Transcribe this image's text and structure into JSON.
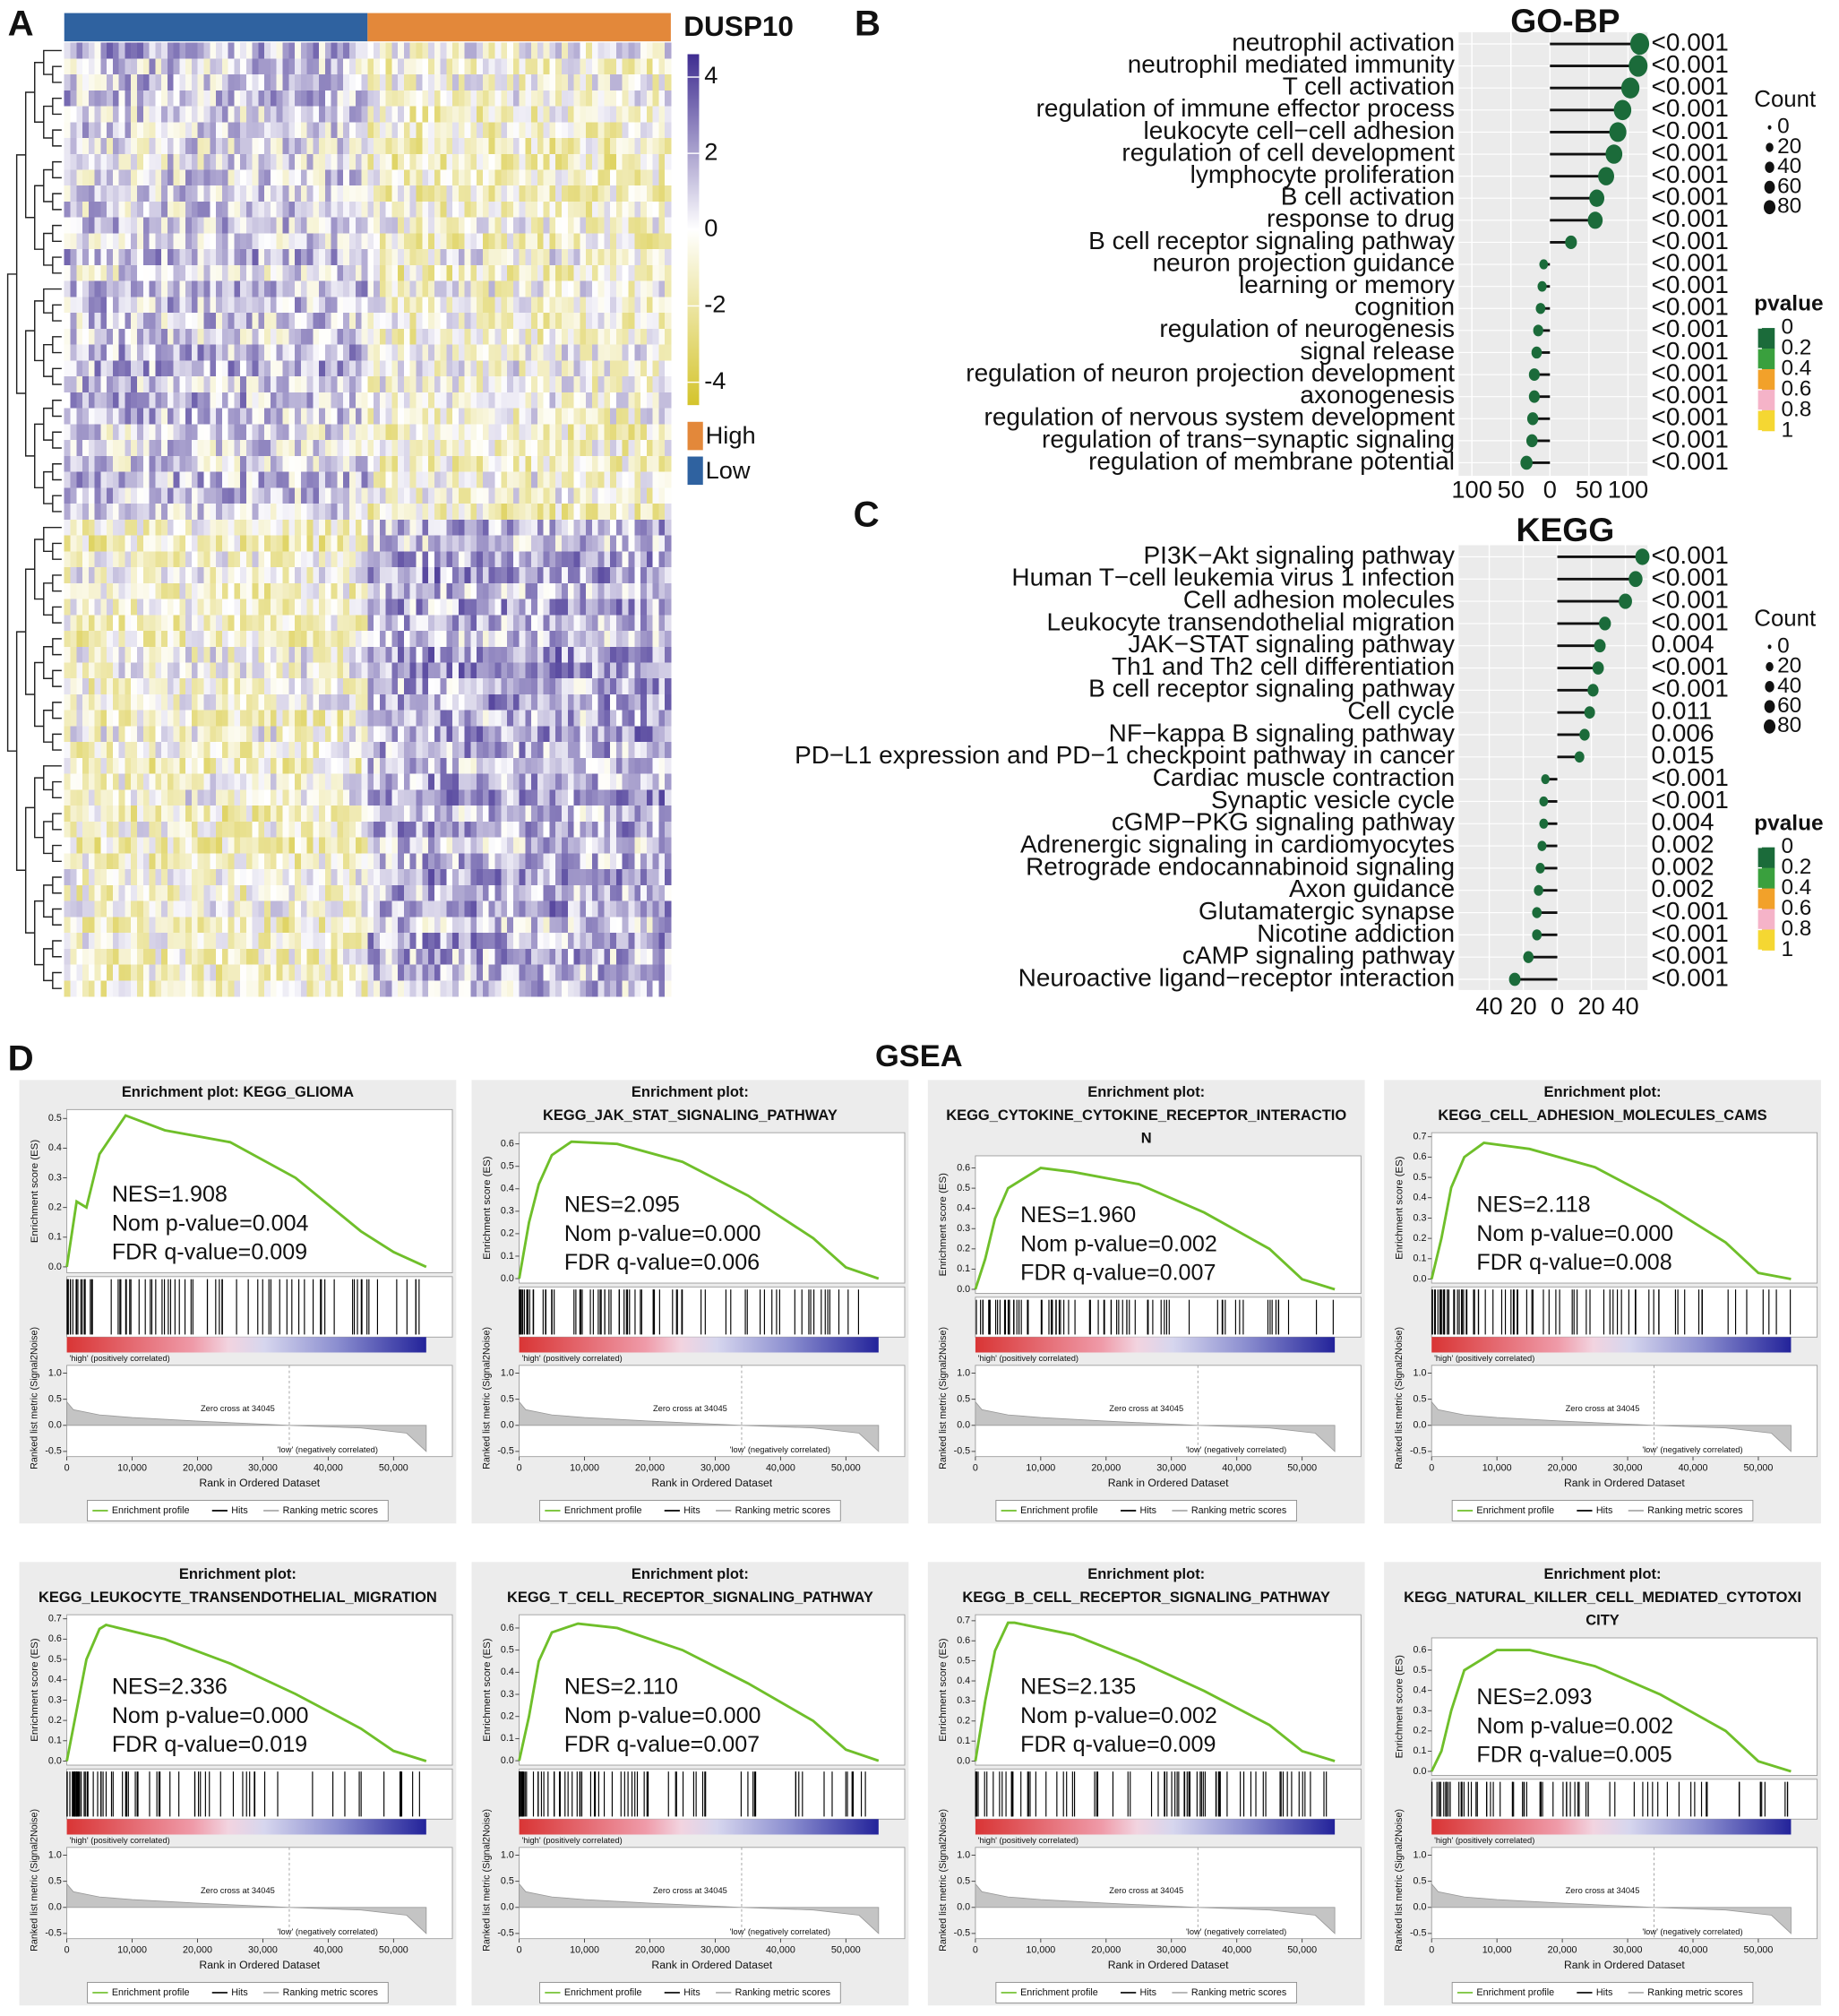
{
  "chart_data": [
    {
      "type": "heatmap",
      "panel": "A",
      "title": "DUSP10",
      "colorbar_lim": [
        -4.6,
        4.6
      ],
      "colorbar_ticks": [
        4,
        2,
        0,
        -2,
        -4
      ],
      "groups": [
        {
          "name": "High",
          "color": "#e3883a"
        },
        {
          "name": "Low",
          "color": "#2f62a0"
        }
      ]
    },
    {
      "type": "lollipop",
      "panel": "B",
      "title": "GO-BP",
      "categories": [
        "neutrophil activation",
        "neutrophil mediated immunity",
        "T cell activation",
        "regulation of immune effector process",
        "leukocyte cell−cell adhesion",
        "regulation of cell development",
        "lymphocyte proliferation",
        "B cell activation",
        "response to drug",
        "B cell receptor signaling pathway",
        "neuron projection guidance",
        "learning or memory",
        "cognition",
        "regulation of neurogenesis",
        "signal release",
        "regulation of neuron projection development",
        "axonogenesis",
        "regulation of nervous system development",
        "regulation of trans−synaptic signaling",
        "regulation of membrane potential"
      ],
      "values": [
        115,
        113,
        103,
        93,
        87,
        82,
        72,
        60,
        58,
        27,
        -8,
        -10,
        -12,
        -15,
        -17,
        -20,
        -20,
        -22,
        -23,
        -30
      ],
      "pvalue_labels": [
        "<0.001",
        "<0.001",
        "<0.001",
        "<0.001",
        "<0.001",
        "<0.001",
        "<0.001",
        "<0.001",
        "<0.001",
        "<0.001",
        "<0.001",
        "<0.001",
        "<0.001",
        "<0.001",
        "<0.001",
        "<0.001",
        "<0.001",
        "<0.001",
        "<0.001",
        "<0.001"
      ],
      "xlim": [
        -117,
        125
      ],
      "xticks": [
        {
          "value": -100,
          "label": "100"
        },
        {
          "value": -50,
          "label": "50"
        },
        0,
        50,
        100
      ],
      "size_title": "Count",
      "size_ticks": [
        0,
        20,
        40,
        60,
        80
      ],
      "color_title": "pvalue",
      "color_ticks": [
        0,
        0.2,
        0.4,
        0.6,
        0.8,
        1
      ],
      "color_scale": [
        "#1b6b3a",
        "#3aa03e",
        "#f2a12a",
        "#f5b3c8",
        "#f5d732"
      ]
    },
    {
      "type": "lollipop",
      "panel": "C",
      "title": "KEGG",
      "categories": [
        "PI3K−Akt signaling pathway",
        "Human T−cell leukemia virus 1 infection",
        "Cell adhesion molecules",
        "Leukocyte transendothelial migration",
        "JAK−STAT signaling pathway",
        "Th1 and Th2 cell differentiation",
        "B cell receptor signaling pathway",
        "Cell cycle",
        "NF−kappa B signaling pathway",
        "PD−L1 expression and PD−1 checkpoint pathway in cancer",
        "Cardiac muscle contraction",
        "Synaptic vesicle cycle",
        "cGMP−PKG signaling pathway",
        "Adrenergic signaling in cardiomyocytes",
        "Retrograde endocannabinoid signaling",
        "Axon guidance",
        "Glutamatergic synapse",
        "Nicotine addiction",
        "cAMP signaling pathway",
        "Neuroactive ligand−receptor interaction"
      ],
      "values": [
        50,
        46,
        40,
        28,
        25,
        24,
        21,
        19,
        16,
        13,
        -7,
        -8,
        -8,
        -9,
        -10,
        -11,
        -12,
        -12,
        -17,
        -25
      ],
      "pvalue_labels": [
        "<0.001",
        "<0.001",
        "<0.001",
        "<0.001",
        "0.004",
        "<0.001",
        "<0.001",
        "0.011",
        "0.006",
        "0.015",
        "<0.001",
        "<0.001",
        "0.004",
        "0.002",
        "0.002",
        "0.002",
        "<0.001",
        "<0.001",
        "<0.001",
        "<0.001"
      ],
      "xlim": [
        -58,
        53
      ],
      "xticks": [
        {
          "value": -40,
          "label": "40"
        },
        {
          "value": -20,
          "label": "20"
        },
        0,
        20,
        40
      ],
      "size_title": "Count",
      "size_ticks": [
        0,
        20,
        40,
        60,
        80
      ],
      "color_title": "pvalue",
      "color_ticks": [
        0,
        0.2,
        0.4,
        0.6,
        0.8,
        1
      ],
      "color_scale": [
        "#1b6b3a",
        "#3aa03e",
        "#f2a12a",
        "#f5b3c8",
        "#f5d732"
      ]
    },
    {
      "type": "gsea",
      "panel": "D",
      "title": "GSEA",
      "x_label": "Rank in Ordered Dataset",
      "es_label": "Enrichment score (ES)",
      "metric_label": "Ranked list metric (Signal2Noise)",
      "xlim": [
        0,
        59000
      ],
      "xticks": [
        0,
        {
          "value": 10000,
          "label": "10,000"
        },
        {
          "value": 20000,
          "label": "20,000"
        },
        {
          "value": 30000,
          "label": "30,000"
        },
        {
          "value": 40000,
          "label": "40,000"
        },
        {
          "value": 50000,
          "label": "50,000"
        }
      ],
      "metric_ylim": [
        -0.6,
        1.15
      ],
      "metric_yticks": [
        {
          "value": 1,
          "label": "1.0"
        },
        0.5,
        {
          "value": 0,
          "label": "0.0"
        },
        -0.5
      ],
      "metric": {
        "x": [
          0,
          1000,
          5000,
          10000,
          20000,
          34045,
          45000,
          52000,
          55000
        ],
        "values": [
          0.45,
          0.3,
          0.2,
          0.15,
          0.08,
          0,
          -0.05,
          -0.15,
          -0.5
        ]
      },
      "zero_cross_x": 34045,
      "zero_cross": "Zero cross at 34045",
      "high_label": "'high' (positively correlated)",
      "low_label": "'low' (negatively correlated)",
      "legend": [
        "Enrichment profile",
        "Hits",
        "Ranking metric scores"
      ],
      "plots": [
        {
          "title": [
            "Enrichment plot: KEGG_GLIOMA"
          ],
          "stats": [
            "NES=1.908",
            "Nom p-value=0.004",
            "FDR q-value=0.009"
          ],
          "ylim": [
            -0.02,
            0.53
          ],
          "yticks": [
            {
              "value": 0,
              "label": "0.0"
            },
            0.1,
            0.2,
            0.3,
            0.4,
            0.5
          ],
          "x": [
            0,
            1500,
            3000,
            5000,
            9000,
            15000,
            25000,
            35000,
            45000,
            50000,
            55000
          ],
          "values": [
            0,
            0.22,
            0.2,
            0.38,
            0.51,
            0.46,
            0.42,
            0.3,
            0.12,
            0.05,
            0
          ]
        },
        {
          "title": [
            "Enrichment plot:",
            "KEGG_JAK_STAT_SIGNALING_PATHWAY"
          ],
          "stats": [
            "NES=2.095",
            "Nom p-value=0.000",
            "FDR q-value=0.006"
          ],
          "ylim": [
            -0.02,
            0.65
          ],
          "yticks": [
            {
              "value": 0,
              "label": "0.0"
            },
            0.1,
            0.2,
            0.3,
            0.4,
            0.5,
            0.6
          ],
          "x": [
            0,
            1500,
            3000,
            5000,
            8000,
            15000,
            25000,
            35000,
            45000,
            50000,
            55000
          ],
          "values": [
            0,
            0.25,
            0.42,
            0.55,
            0.61,
            0.6,
            0.52,
            0.37,
            0.18,
            0.05,
            0
          ]
        },
        {
          "title": [
            "Enrichment plot:",
            "KEGG_CYTOKINE_CYTOKINE_RECEPTOR_INTERACTIO",
            "N"
          ],
          "stats": [
            "NES=1.960",
            "Nom p-value=0.002",
            "FDR q-value=0.007"
          ],
          "ylim": [
            -0.02,
            0.66
          ],
          "yticks": [
            {
              "value": 0,
              "label": "0.0"
            },
            0.1,
            0.2,
            0.3,
            0.4,
            0.5,
            0.6
          ],
          "x": [
            0,
            1500,
            3000,
            5000,
            10000,
            15000,
            25000,
            35000,
            45000,
            50000,
            55000
          ],
          "values": [
            0,
            0.15,
            0.35,
            0.5,
            0.6,
            0.58,
            0.52,
            0.38,
            0.2,
            0.05,
            0
          ]
        },
        {
          "title": [
            "Enrichment plot:",
            "KEGG_CELL_ADHESION_MOLECULES_CAMS"
          ],
          "stats": [
            "NES=2.118",
            "Nom p-value=0.000",
            "FDR q-value=0.008"
          ],
          "ylim": [
            -0.02,
            0.72
          ],
          "yticks": [
            {
              "value": 0,
              "label": "0.0"
            },
            0.1,
            0.2,
            0.3,
            0.4,
            0.5,
            0.6,
            0.7
          ],
          "x": [
            0,
            1500,
            3000,
            5000,
            8000,
            15000,
            25000,
            35000,
            45000,
            50000,
            55000
          ],
          "values": [
            0,
            0.2,
            0.45,
            0.6,
            0.67,
            0.64,
            0.55,
            0.38,
            0.18,
            0.03,
            0
          ]
        },
        {
          "title": [
            "Enrichment plot:",
            "KEGG_LEUKOCYTE_TRANSENDOTHELIAL_MIGRATION"
          ],
          "stats": [
            "NES=2.336",
            "Nom p-value=0.000",
            "FDR q-value=0.019"
          ],
          "ylim": [
            -0.02,
            0.72
          ],
          "yticks": [
            {
              "value": 0,
              "label": "0.0"
            },
            0.1,
            0.2,
            0.3,
            0.4,
            0.5,
            0.6,
            0.7
          ],
          "x": [
            0,
            1500,
            3000,
            5000,
            6000,
            15000,
            25000,
            35000,
            45000,
            50000,
            55000
          ],
          "values": [
            0,
            0.25,
            0.5,
            0.65,
            0.67,
            0.6,
            0.48,
            0.33,
            0.16,
            0.05,
            0
          ]
        },
        {
          "title": [
            "Enrichment plot:",
            "KEGG_T_CELL_RECEPTOR_SIGNALING_PATHWAY"
          ],
          "stats": [
            "NES=2.110",
            "Nom p-value=0.000",
            "FDR q-value=0.007"
          ],
          "ylim": [
            -0.02,
            0.66
          ],
          "yticks": [
            {
              "value": 0,
              "label": "0.0"
            },
            0.1,
            0.2,
            0.3,
            0.4,
            0.5,
            0.6
          ],
          "x": [
            0,
            1500,
            3000,
            5000,
            9000,
            15000,
            25000,
            35000,
            45000,
            50000,
            55000
          ],
          "values": [
            0,
            0.2,
            0.45,
            0.58,
            0.62,
            0.6,
            0.5,
            0.35,
            0.18,
            0.05,
            0
          ]
        },
        {
          "title": [
            "Enrichment plot:",
            "KEGG_B_CELL_RECEPTOR_SIGNALING_PATHWAY"
          ],
          "stats": [
            "NES=2.135",
            "Nom p-value=0.002",
            "FDR q-value=0.009"
          ],
          "ylim": [
            -0.02,
            0.73
          ],
          "yticks": [
            {
              "value": 0,
              "label": "0.0"
            },
            0.1,
            0.2,
            0.3,
            0.4,
            0.5,
            0.6,
            0.7
          ],
          "x": [
            0,
            1500,
            3000,
            5000,
            6000,
            15000,
            25000,
            35000,
            45000,
            50000,
            55000
          ],
          "values": [
            0,
            0.3,
            0.55,
            0.69,
            0.69,
            0.63,
            0.5,
            0.35,
            0.18,
            0.05,
            0
          ]
        },
        {
          "title": [
            "Enrichment plot:",
            "KEGG_NATURAL_KILLER_CELL_MEDIATED_CYTOTOXI",
            "CITY"
          ],
          "stats": [
            "NES=2.093",
            "Nom p-value=0.002",
            "FDR q-value=0.005"
          ],
          "ylim": [
            -0.02,
            0.66
          ],
          "yticks": [
            {
              "value": 0,
              "label": "0.0"
            },
            0.1,
            0.2,
            0.3,
            0.4,
            0.5,
            0.6
          ],
          "x": [
            0,
            1500,
            3000,
            5000,
            10000,
            15000,
            25000,
            35000,
            45000,
            50000,
            55000
          ],
          "values": [
            0,
            0.1,
            0.3,
            0.5,
            0.6,
            0.6,
            0.52,
            0.38,
            0.2,
            0.05,
            0
          ]
        }
      ]
    }
  ]
}
